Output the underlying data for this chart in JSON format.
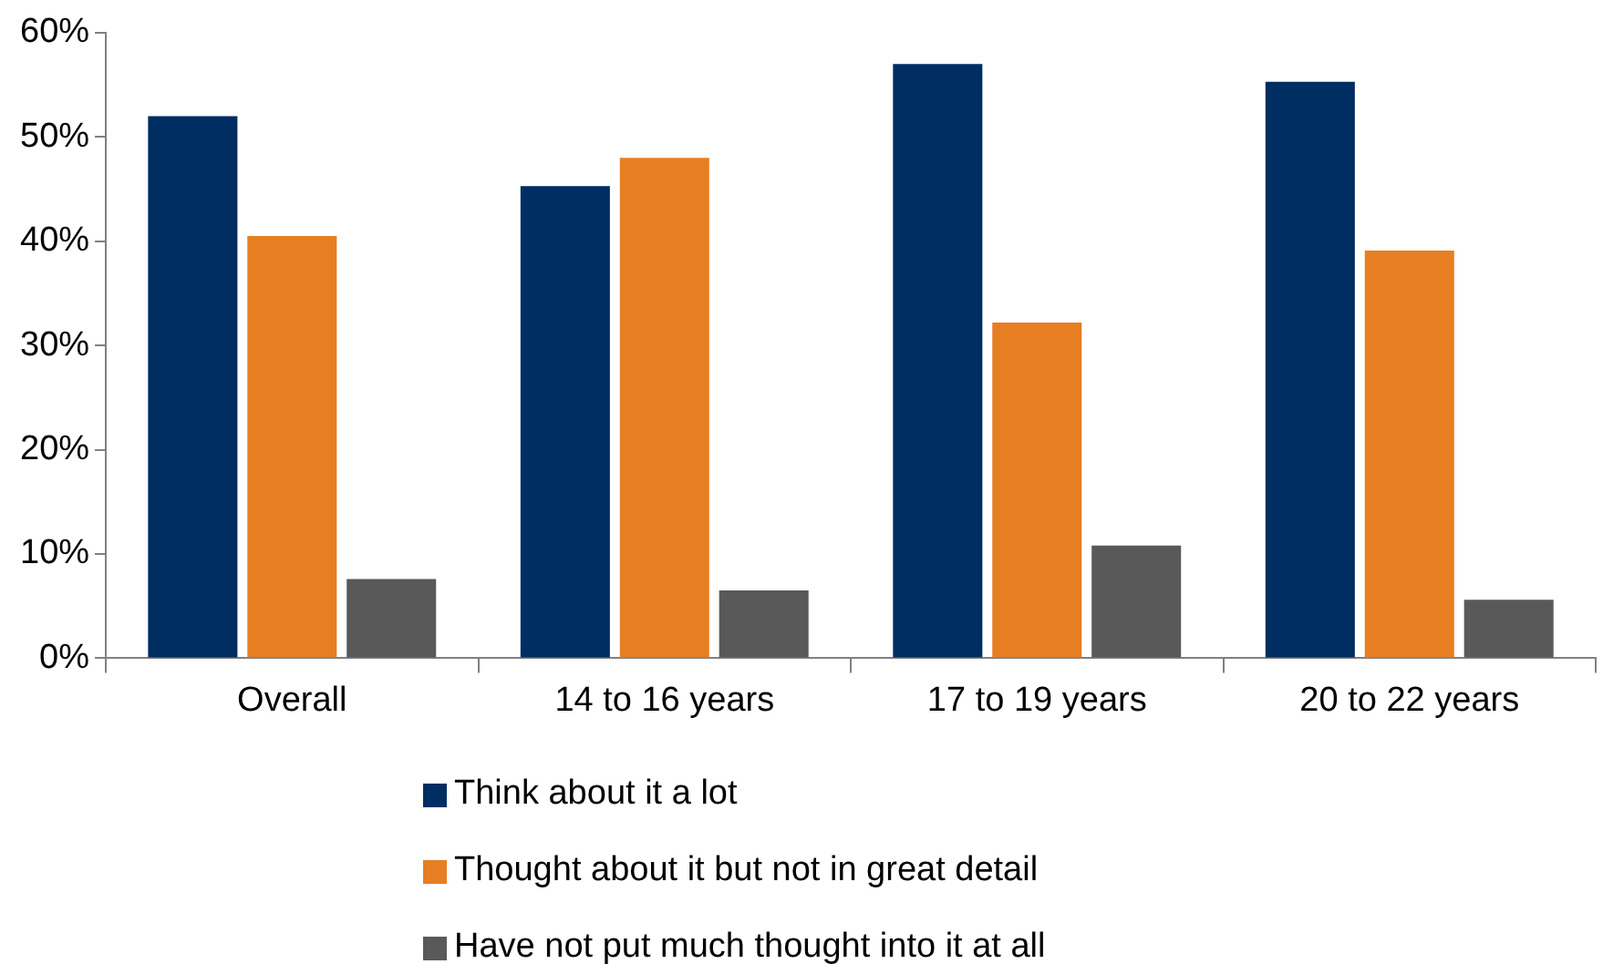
{
  "chart_data": {
    "type": "bar",
    "categories": [
      "Overall",
      "14 to 16 years",
      "17 to 19 years",
      "20 to 22 years"
    ],
    "series": [
      {
        "name": "Think about it a lot",
        "color": "#002d62",
        "values": [
          52,
          45.3,
          57,
          55.3
        ]
      },
      {
        "name": "Thought about it but not in great detail",
        "color": "#e87e22",
        "values": [
          40.5,
          48,
          32.2,
          39.1
        ]
      },
      {
        "name": "Have not put much thought into it at all",
        "color": "#595959",
        "values": [
          7.6,
          6.5,
          10.8,
          5.6
        ]
      }
    ],
    "ylim": [
      0,
      60
    ],
    "yticks": [
      {
        "value": 0,
        "label": "0%"
      },
      {
        "value": 10,
        "label": "10%"
      },
      {
        "value": 20,
        "label": "20%"
      },
      {
        "value": 30,
        "label": "30%"
      },
      {
        "value": 40,
        "label": "40%"
      },
      {
        "value": 50,
        "label": "50%"
      },
      {
        "value": 60,
        "label": "60%"
      }
    ],
    "grid": false,
    "legend": "bottom"
  }
}
